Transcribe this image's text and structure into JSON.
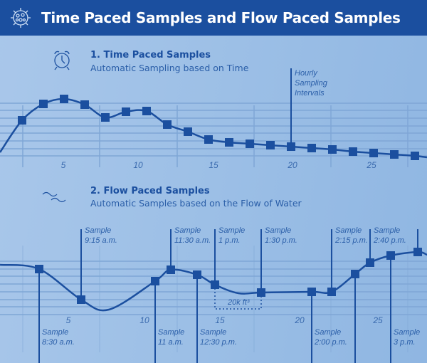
{
  "header": {
    "title": "Time Paced Samples and Flow Paced Samples",
    "icon": "virus-icon"
  },
  "time_section": {
    "title": "1. Time Paced Samples",
    "subtitle": "Automatic Sampling based on Time",
    "icon": "alarm-clock-icon",
    "annotation": [
      "Hourly",
      "Sampling",
      "Intervals"
    ],
    "ticks": [
      "5",
      "10",
      "15",
      "20",
      "25"
    ]
  },
  "flow_section": {
    "title": "2. Flow Paced Samples",
    "subtitle": "Automatic Samples based on the Flow of Water",
    "icon": "water-waves-icon",
    "ticks": [
      "5",
      "10",
      "15",
      "20",
      "25"
    ],
    "volume_label": "20k ft³",
    "samples_above": [
      [
        "Sample",
        "9:15 a.m."
      ],
      [
        "Sample",
        "11:30 a.m."
      ],
      [
        "Sample",
        "1 p.m."
      ],
      [
        "Sample",
        "1:30 p.m."
      ],
      [
        "Sample",
        "2:15 p.m."
      ],
      [
        "Sample",
        "2:40 p.m."
      ]
    ],
    "samples_below": [
      [
        "Sample",
        "8:30 a.m."
      ],
      [
        "Sample",
        "11 a.m."
      ],
      [
        "Sample",
        "12:30 p.m."
      ],
      [
        "Sample",
        "2:00 p.m."
      ],
      [
        "Sample",
        "3 p.m."
      ]
    ]
  },
  "colors": {
    "header": "#1b4f9f",
    "line": "#1b4f9f",
    "grid": "#7fa6d6"
  }
}
